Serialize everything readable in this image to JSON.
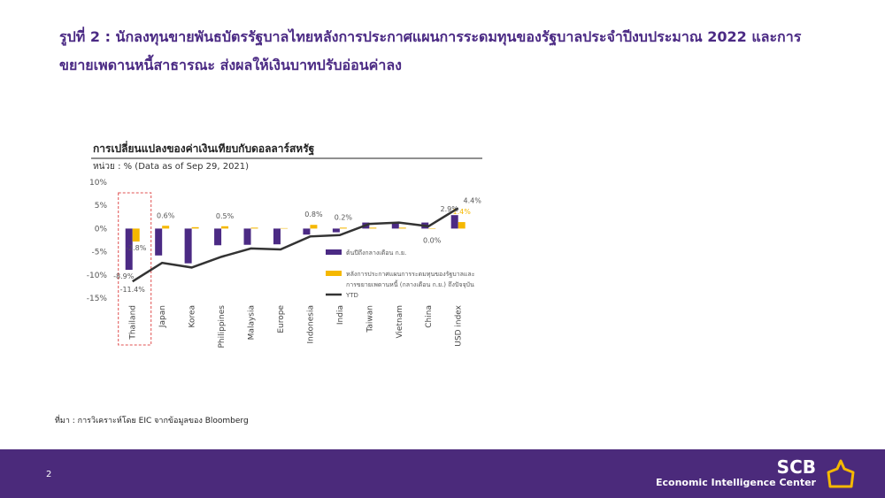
{
  "title_lines": [
    "รูปที่ 2 : นักลงทุนขายพันธบัตรรัฐบาลไทยหลังการประกาศแผนการระดมทุนของรัฐบาลประจำปีงบประมาณ 2022 และการ",
    "ขยายเพดานหนี้สาธารณะ ส่งผลให้เงินบาทปรับอ่อนค่าลง"
  ],
  "chart_data": {
    "type": "bar",
    "title": "การเปลี่ยนแปลงของค่าเงินเทียบกับดอลลาร์สหรัฐ",
    "subtitle": "หน่วย : % (Data as of Sep 29, 2021)",
    "categories": [
      "Thailand",
      "Japan",
      "Korea",
      "Philippines",
      "Malaysia",
      "Europe",
      "Indonesia",
      "India",
      "Taiwan",
      "Vietnam",
      "China",
      "USD index"
    ],
    "series": [
      {
        "name": "ต้นปีถึงกลางเดือน ก.ย.",
        "type": "bar",
        "color": "#4b2a84",
        "values": [
          -8.9,
          -5.8,
          -7.5,
          -3.6,
          -3.5,
          -3.4,
          -1.3,
          -0.8,
          1.3,
          1.2,
          1.3,
          2.9
        ],
        "value_labels": [
          "-8.9%",
          null,
          null,
          null,
          null,
          null,
          null,
          null,
          null,
          null,
          null,
          "2.9%"
        ]
      },
      {
        "name": "หลังการประกาศแผนการระดมทุนของรัฐบาลและการขยายเพดานหนี้ (กลางเดือน ก.ย.) ถึงปัจจุบัน",
        "type": "bar",
        "color": "#f5b800",
        "values": [
          -2.8,
          0.6,
          0.3,
          0.5,
          0.2,
          0.1,
          0.8,
          0.2,
          0.2,
          0.2,
          0.0,
          1.4
        ],
        "value_labels": [
          "-2.8%",
          "0.6%",
          null,
          "0.5%",
          null,
          null,
          "0.8%",
          "0.2%",
          null,
          null,
          "0.0%",
          "1.4%"
        ]
      },
      {
        "name": "YTD",
        "type": "line",
        "color": "#333333",
        "values": [
          -11.4,
          -7.4,
          -8.4,
          -6.1,
          -4.3,
          -4.5,
          -1.7,
          -1.4,
          1.0,
          1.3,
          0.5,
          4.4
        ],
        "value_labels": [
          "-11.4%",
          null,
          null,
          null,
          null,
          null,
          null,
          null,
          null,
          null,
          null,
          "4.4%"
        ]
      }
    ],
    "ylim": [
      -15,
      10
    ],
    "yticks": [
      {
        "value": 10,
        "label": "10%"
      },
      {
        "value": 5,
        "label": "5%"
      },
      {
        "value": 0,
        "label": "0%"
      },
      {
        "value": -5,
        "label": "-5%"
      },
      {
        "value": -10,
        "label": "-10%"
      },
      {
        "value": -15,
        "label": "-15%"
      }
    ],
    "highlight_category": 0
  },
  "source": "ที่มา : การวิเคราะห์โดย EIC จากข้อมูลของ Bloomberg",
  "page_number": "2",
  "logo": {
    "name": "SCB",
    "tagline": "Economic Intelligence Center"
  }
}
